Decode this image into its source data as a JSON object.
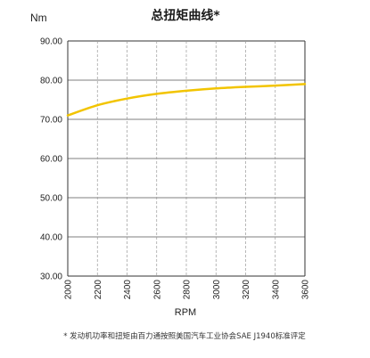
{
  "chart_data": {
    "type": "line",
    "title": "总扭矩曲线*",
    "ylabel": "Nm",
    "xlabel": "RPM",
    "footnote": "* 发动机功率和扭矩由百力通按照美国汽车工业协会SAE J1940标准评定",
    "xlim": [
      2000,
      3600
    ],
    "ylim": [
      30,
      90
    ],
    "x_ticks": [
      "2000",
      "2200",
      "2400",
      "2600",
      "2800",
      "3000",
      "3200",
      "3400",
      "3600"
    ],
    "y_ticks": [
      "90.00",
      "80.00",
      "70.00",
      "60.00",
      "50.00",
      "40.00",
      "30.00"
    ],
    "grid": {
      "horizontal": "solid",
      "vertical": "dashed"
    },
    "series": [
      {
        "color": "#f2c400",
        "x": [
          2000,
          2200,
          2400,
          2600,
          2800,
          3000,
          3200,
          3400,
          3600
        ],
        "y": [
          71.0,
          73.6,
          75.3,
          76.5,
          77.3,
          77.9,
          78.3,
          78.6,
          79.0
        ]
      }
    ]
  }
}
